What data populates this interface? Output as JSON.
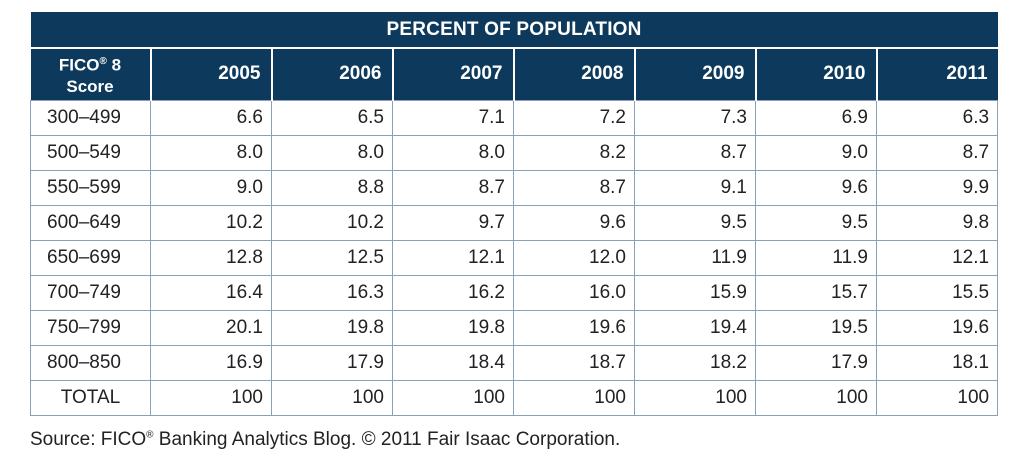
{
  "table": {
    "banner_title": "PERCENT OF POPULATION",
    "score_header_line1": "FICO",
    "score_header_reg": "®",
    "score_header_line1_suffix": " 8",
    "score_header_line2": "Score",
    "years": [
      "2005",
      "2006",
      "2007",
      "2008",
      "2009",
      "2010",
      "2011"
    ],
    "rows": [
      {
        "score": "300–499",
        "values": [
          "6.6",
          "6.5",
          "7.1",
          "7.2",
          "7.3",
          "6.9",
          "6.3"
        ]
      },
      {
        "score": "500–549",
        "values": [
          "8.0",
          "8.0",
          "8.0",
          "8.2",
          "8.7",
          "9.0",
          "8.7"
        ]
      },
      {
        "score": "550–599",
        "values": [
          "9.0",
          "8.8",
          "8.7",
          "8.7",
          "9.1",
          "9.6",
          "9.9"
        ]
      },
      {
        "score": "600–649",
        "values": [
          "10.2",
          "10.2",
          "9.7",
          "9.6",
          "9.5",
          "9.5",
          "9.8"
        ]
      },
      {
        "score": "650–699",
        "values": [
          "12.8",
          "12.5",
          "12.1",
          "12.0",
          "11.9",
          "11.9",
          "12.1"
        ]
      },
      {
        "score": "700–749",
        "values": [
          "16.4",
          "16.3",
          "16.2",
          "16.0",
          "15.9",
          "15.7",
          "15.5"
        ]
      },
      {
        "score": "750–799",
        "values": [
          "20.1",
          "19.8",
          "19.8",
          "19.6",
          "19.4",
          "19.5",
          "19.6"
        ]
      },
      {
        "score": "800–850",
        "values": [
          "16.9",
          "17.9",
          "18.4",
          "18.7",
          "18.2",
          "17.9",
          "18.1"
        ]
      },
      {
        "score": "TOTAL",
        "values": [
          "100",
          "100",
          "100",
          "100",
          "100",
          "100",
          "100"
        ]
      }
    ]
  },
  "source": {
    "prefix": "Source: FICO",
    "reg": "®",
    "suffix": " Banking Analytics Blog.  © 2011 Fair Isaac Corporation."
  },
  "colors": {
    "header_bg": "#0d3a5c",
    "header_text": "#ffffff",
    "grid": "#8aa0b8"
  }
}
